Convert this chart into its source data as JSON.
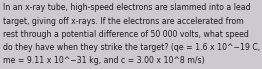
{
  "background_color": "#cccad0",
  "text_color": "#1a1a1a",
  "lines": [
    "In an x-ray tube, high-speed electrons are slammed into a lead",
    "target, giving off x-rays. If the electrons are accelerated from",
    "rest through a potential difference of 50 000 volts, what speed",
    "do they have when they strike the target? (qe = 1.6 x 10^−19 C,",
    "me = 9.11 x 10^−31 kg, and c = 3.00 x 10^8 m/s)"
  ],
  "font_size": 5.6,
  "font_family": "DejaVu Sans"
}
